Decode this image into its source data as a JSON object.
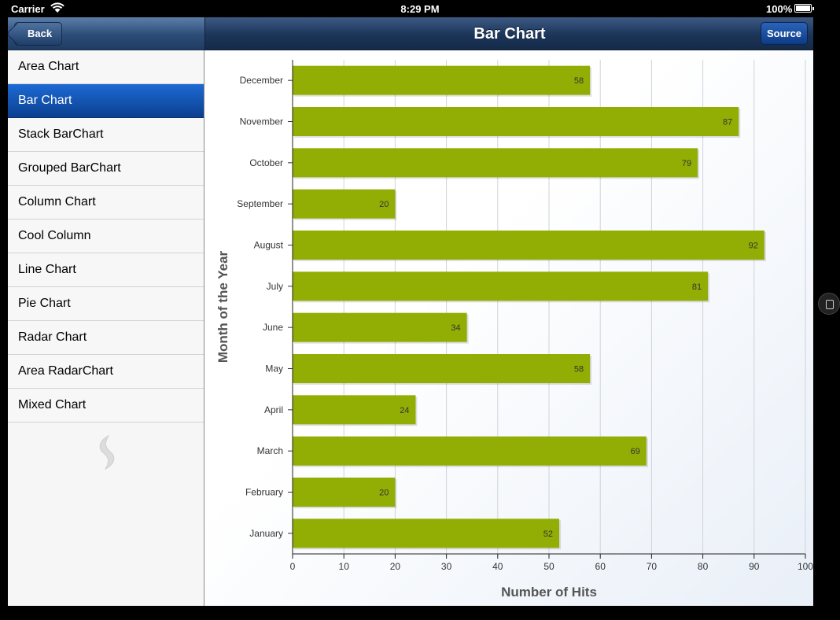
{
  "status_bar": {
    "carrier": "Carrier",
    "time": "8:29 PM",
    "battery": "100%",
    "battery_level": 1.0
  },
  "left_nav": {
    "back_label": "Back"
  },
  "header": {
    "title": "Bar Chart",
    "source_label": "Source"
  },
  "sidebar": {
    "items": [
      {
        "label": "Area Chart",
        "active": false
      },
      {
        "label": "Bar Chart",
        "active": true
      },
      {
        "label": "Stack BarChart",
        "active": false
      },
      {
        "label": "Grouped BarChart",
        "active": false
      },
      {
        "label": "Column Chart",
        "active": false
      },
      {
        "label": "Cool Column",
        "active": false
      },
      {
        "label": "Line Chart",
        "active": false
      },
      {
        "label": "Pie Chart",
        "active": false
      },
      {
        "label": "Radar Chart",
        "active": false
      },
      {
        "label": "Area RadarChart",
        "active": false
      },
      {
        "label": "Mixed Chart",
        "active": false
      }
    ]
  },
  "colors": {
    "bar": "#92ae04",
    "selected": "#0b4aa8"
  },
  "chart_data": {
    "type": "bar",
    "orientation": "horizontal",
    "categories": [
      "December",
      "November",
      "October",
      "September",
      "August",
      "July",
      "June",
      "May",
      "April",
      "March",
      "February",
      "January"
    ],
    "values": [
      58,
      87,
      79,
      20,
      92,
      81,
      34,
      58,
      24,
      69,
      20,
      52
    ],
    "xlabel": "Number of Hits",
    "ylabel": "Month of the Year",
    "xlim": [
      0,
      100
    ],
    "xticks": [
      0,
      10,
      20,
      30,
      40,
      50,
      60,
      70,
      80,
      90,
      100
    ],
    "grid": true
  }
}
